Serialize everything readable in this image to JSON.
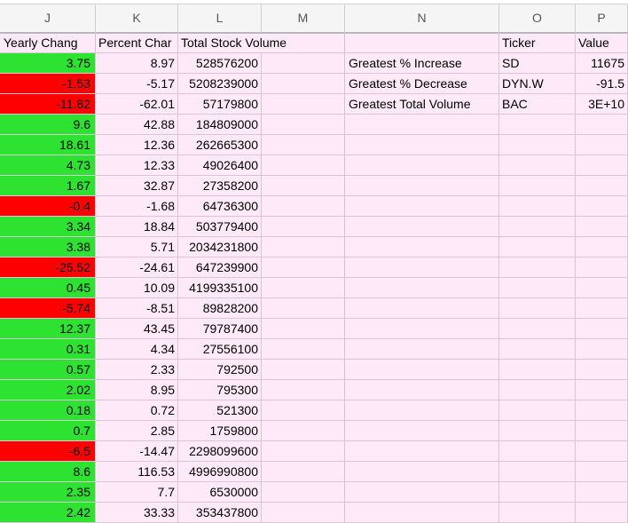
{
  "columns": [
    "J",
    "K",
    "L",
    "M",
    "N",
    "O",
    "P"
  ],
  "headers": {
    "yearly_change": "Yearly Chang",
    "percent_change": "Percent Char",
    "total_volume": "Total Stock Volume",
    "ticker": "Ticker",
    "value": "Value"
  },
  "summary": [
    {
      "label": "Greatest % Increase",
      "ticker": "SD",
      "value": "11675"
    },
    {
      "label": "Greatest % Decrease",
      "ticker": "DYN.W",
      "value": "-91.5"
    },
    {
      "label": "Greatest Total Volume",
      "ticker": "BAC",
      "value": "3E+10"
    }
  ],
  "rows": [
    {
      "yearly": "3.75",
      "pct": "8.97",
      "vol": "528576200",
      "status": "pos"
    },
    {
      "yearly": "-1.53",
      "pct": "-5.17",
      "vol": "5208239000",
      "status": "neg"
    },
    {
      "yearly": "-11.82",
      "pct": "-62.01",
      "vol": "57179800",
      "status": "neg"
    },
    {
      "yearly": "9.6",
      "pct": "42.88",
      "vol": "184809000",
      "status": "pos"
    },
    {
      "yearly": "18.61",
      "pct": "12.36",
      "vol": "262665300",
      "status": "pos"
    },
    {
      "yearly": "4.73",
      "pct": "12.33",
      "vol": "49026400",
      "status": "pos"
    },
    {
      "yearly": "1.67",
      "pct": "32.87",
      "vol": "27358200",
      "status": "pos"
    },
    {
      "yearly": "-0.4",
      "pct": "-1.68",
      "vol": "64736300",
      "status": "neg"
    },
    {
      "yearly": "3.34",
      "pct": "18.84",
      "vol": "503779400",
      "status": "pos"
    },
    {
      "yearly": "3.38",
      "pct": "5.71",
      "vol": "2034231800",
      "status": "pos"
    },
    {
      "yearly": "-25.52",
      "pct": "-24.61",
      "vol": "647239900",
      "status": "neg"
    },
    {
      "yearly": "0.45",
      "pct": "10.09",
      "vol": "4199335100",
      "status": "pos"
    },
    {
      "yearly": "-5.74",
      "pct": "-8.51",
      "vol": "89828200",
      "status": "neg"
    },
    {
      "yearly": "12.37",
      "pct": "43.45",
      "vol": "79787400",
      "status": "pos"
    },
    {
      "yearly": "0.31",
      "pct": "4.34",
      "vol": "27556100",
      "status": "pos"
    },
    {
      "yearly": "0.57",
      "pct": "2.33",
      "vol": "792500",
      "status": "pos"
    },
    {
      "yearly": "2.02",
      "pct": "8.95",
      "vol": "795300",
      "status": "pos"
    },
    {
      "yearly": "0.18",
      "pct": "0.72",
      "vol": "521300",
      "status": "pos"
    },
    {
      "yearly": "0.7",
      "pct": "2.85",
      "vol": "1759800",
      "status": "pos"
    },
    {
      "yearly": "-6.5",
      "pct": "-14.47",
      "vol": "2298099600",
      "status": "neg"
    },
    {
      "yearly": "8.6",
      "pct": "116.53",
      "vol": "4996990800",
      "status": "pos"
    },
    {
      "yearly": "2.35",
      "pct": "7.7",
      "vol": "6530000",
      "status": "pos"
    },
    {
      "yearly": "2.42",
      "pct": "33.33",
      "vol": "353437800",
      "status": "pos"
    }
  ],
  "colors": {
    "positive": "#2ee232",
    "negative": "#ff0000",
    "sheet_background": "#fde9f7"
  }
}
